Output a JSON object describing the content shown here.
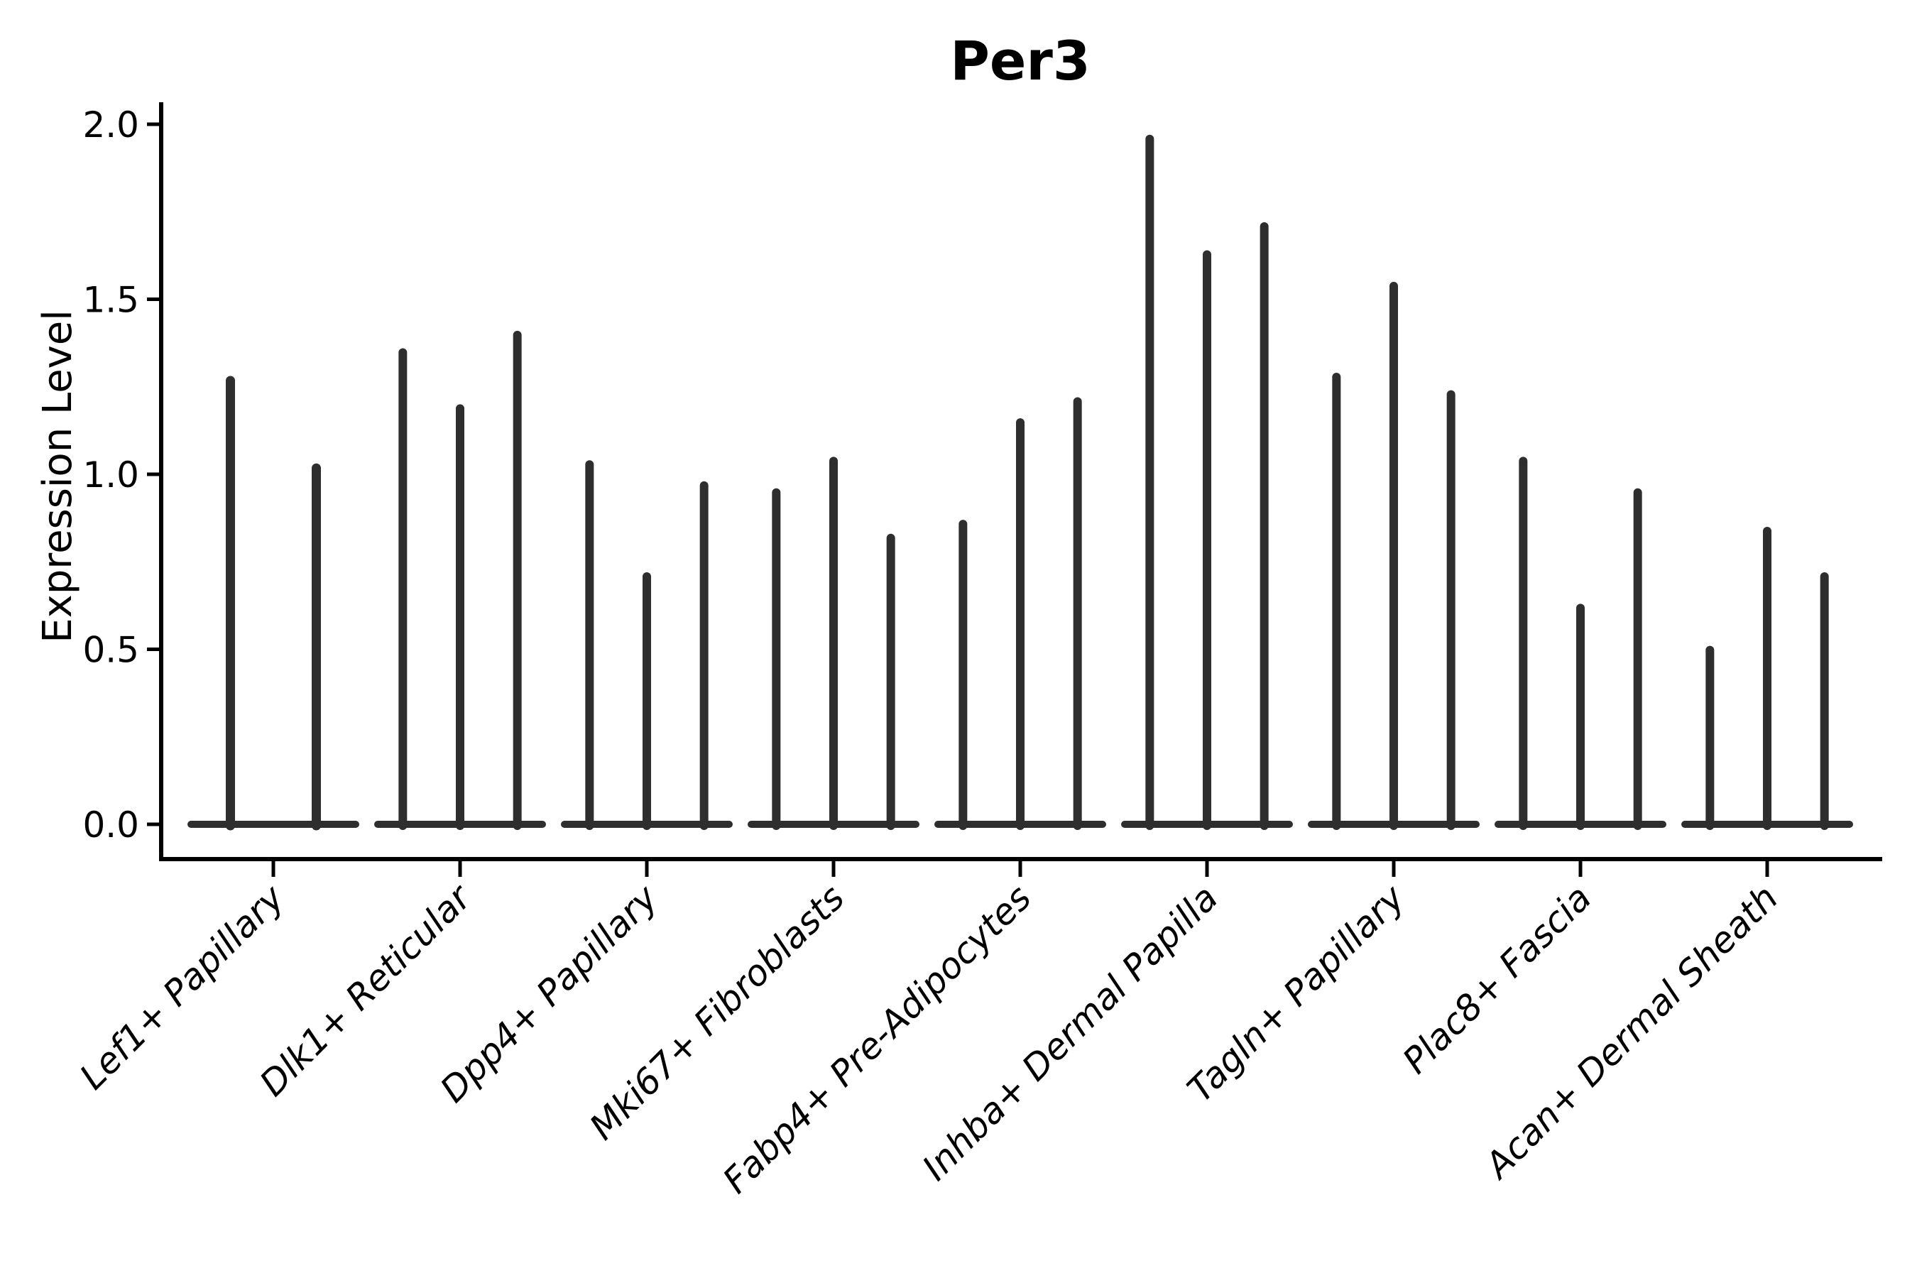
{
  "title": "Per3",
  "y_axis": {
    "label": "Expression Level",
    "tick_labels": [
      "0.0",
      "0.5",
      "1.0",
      "1.5",
      "2.0"
    ]
  },
  "colors": {
    "violin": "#2e2e2e",
    "axis": "#000000",
    "text": "#000000",
    "background": "#ffffff"
  },
  "chart_data": {
    "type": "violin",
    "title": "Per3",
    "ylabel": "Expression Level",
    "xlabel": "",
    "ylim": [
      -0.1,
      2.06
    ],
    "yticks": [
      0.0,
      0.5,
      1.0,
      1.5,
      2.0
    ],
    "grid": false,
    "legend_position": "none",
    "style_note": "each violin is a near-zero-width spike: dense mass at 0 (flat base band) with a thin tail rising to the max expression value",
    "categories": [
      "Lef1+ Papillary",
      "Dlk1+ Reticular",
      "Dpp4+ Papillary",
      "Mki67+ Fibroblasts",
      "Fabp4+ Pre-Adipocytes",
      "Inhba+ Dermal Papilla",
      "Tagln+ Papillary",
      "Plac8+ Fascia",
      "Acan+ Dermal Sheath"
    ],
    "groups": [
      {
        "category": "Lef1+ Papillary",
        "violin_max_expression": [
          1.28,
          1.03
        ]
      },
      {
        "category": "Dlk1+ Reticular",
        "violin_max_expression": [
          1.36,
          1.2,
          1.41
        ]
      },
      {
        "category": "Dpp4+ Papillary",
        "violin_max_expression": [
          1.04,
          0.72,
          0.98
        ]
      },
      {
        "category": "Mki67+ Fibroblasts",
        "violin_max_expression": [
          0.96,
          1.05,
          0.83
        ]
      },
      {
        "category": "Fabp4+ Pre-Adipocytes",
        "violin_max_expression": [
          0.87,
          1.16,
          1.22
        ]
      },
      {
        "category": "Inhba+ Dermal Papilla",
        "violin_max_expression": [
          1.97,
          1.64,
          1.72
        ]
      },
      {
        "category": "Tagln+ Papillary",
        "violin_max_expression": [
          1.29,
          1.55,
          1.24
        ]
      },
      {
        "category": "Plac8+ Fascia",
        "violin_max_expression": [
          1.05,
          0.63,
          0.96
        ]
      },
      {
        "category": "Acan+ Dermal Sheath",
        "violin_max_expression": [
          0.51,
          0.85,
          0.72
        ]
      }
    ]
  }
}
